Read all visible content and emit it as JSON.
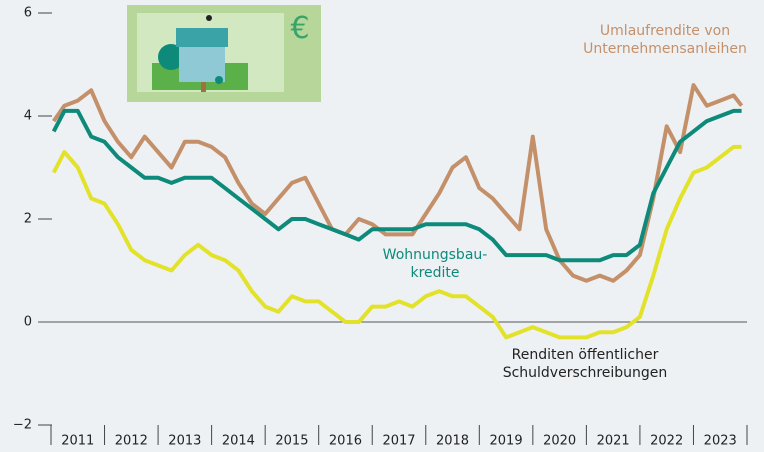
{
  "chart_data": {
    "type": "line",
    "icon_text": "€",
    "x": [
      2011.05,
      2011.25,
      2011.5,
      2011.75,
      2012,
      2012.25,
      2012.5,
      2012.75,
      2013,
      2013.25,
      2013.5,
      2013.75,
      2014,
      2014.25,
      2014.5,
      2014.75,
      2015,
      2015.25,
      2015.5,
      2015.75,
      2016,
      2016.25,
      2016.5,
      2016.75,
      2017,
      2017.25,
      2017.5,
      2017.75,
      2018,
      2018.25,
      2018.5,
      2018.75,
      2019,
      2019.25,
      2019.5,
      2019.75,
      2020,
      2020.25,
      2020.5,
      2020.75,
      2021,
      2021.25,
      2021.5,
      2021.75,
      2022,
      2022.25,
      2022.5,
      2022.75,
      2023,
      2023.25,
      2023.5,
      2023.75,
      2023.9
    ],
    "xlim": [
      2011,
      2024
    ],
    "xticks": [
      2011,
      2012,
      2013,
      2014,
      2015,
      2016,
      2017,
      2018,
      2019,
      2020,
      2021,
      2022,
      2023,
      2024
    ],
    "period_labels": [
      "2011",
      "2012",
      "2013",
      "2014",
      "2015",
      "2016",
      "2017",
      "2018",
      "2019",
      "2020",
      "2021",
      "2022",
      "2023"
    ],
    "ylim": [
      -2,
      6
    ],
    "yticks": [
      {
        "value": -2,
        "label": "−2"
      },
      0,
      2,
      4,
      6
    ],
    "series": [
      {
        "name": "Umlaufrendite von\nUnternehmensanleihen",
        "color": "#c4906a",
        "values": [
          3.9,
          4.2,
          4.3,
          4.5,
          3.9,
          3.5,
          3.2,
          3.6,
          3.3,
          3.0,
          3.5,
          3.5,
          3.4,
          3.2,
          2.7,
          2.3,
          2.1,
          2.4,
          2.7,
          2.8,
          2.3,
          1.8,
          1.7,
          2.0,
          1.9,
          1.7,
          1.7,
          1.7,
          2.1,
          2.5,
          3.0,
          3.2,
          2.6,
          2.4,
          2.1,
          1.8,
          3.6,
          1.8,
          1.2,
          0.9,
          0.8,
          0.9,
          0.8,
          1.0,
          1.3,
          2.4,
          3.8,
          3.3,
          4.6,
          4.2,
          4.3,
          4.4,
          4.2
        ]
      },
      {
        "name": "Wohnungsbau-\nkredite",
        "color": "#0e8a7a",
        "values": [
          3.7,
          4.1,
          4.1,
          3.6,
          3.5,
          3.2,
          3.0,
          2.8,
          2.8,
          2.7,
          2.8,
          2.8,
          2.8,
          2.6,
          2.4,
          2.2,
          2.0,
          1.8,
          2.0,
          2.0,
          1.9,
          1.8,
          1.7,
          1.6,
          1.8,
          1.8,
          1.8,
          1.8,
          1.9,
          1.9,
          1.9,
          1.9,
          1.8,
          1.6,
          1.3,
          1.3,
          1.3,
          1.3,
          1.2,
          1.2,
          1.2,
          1.2,
          1.3,
          1.3,
          1.5,
          2.5,
          3.0,
          3.5,
          3.7,
          3.9,
          4.0,
          4.1,
          4.1
        ]
      },
      {
        "name": "Renditen öffentlicher\nSchuldverschreibungen",
        "color": "#e3e22a",
        "values": [
          2.9,
          3.3,
          3.0,
          2.4,
          2.3,
          1.9,
          1.4,
          1.2,
          1.1,
          1.0,
          1.3,
          1.5,
          1.3,
          1.2,
          1.0,
          0.6,
          0.3,
          0.2,
          0.5,
          0.4,
          0.4,
          0.2,
          0.0,
          0.0,
          0.3,
          0.3,
          0.4,
          0.3,
          0.5,
          0.6,
          0.5,
          0.5,
          0.3,
          0.1,
          -0.3,
          -0.2,
          -0.1,
          -0.2,
          -0.3,
          -0.3,
          -0.3,
          -0.2,
          -0.2,
          -0.1,
          0.1,
          0.9,
          1.8,
          2.4,
          2.9,
          3.0,
          3.2,
          3.4,
          3.4
        ]
      }
    ]
  }
}
